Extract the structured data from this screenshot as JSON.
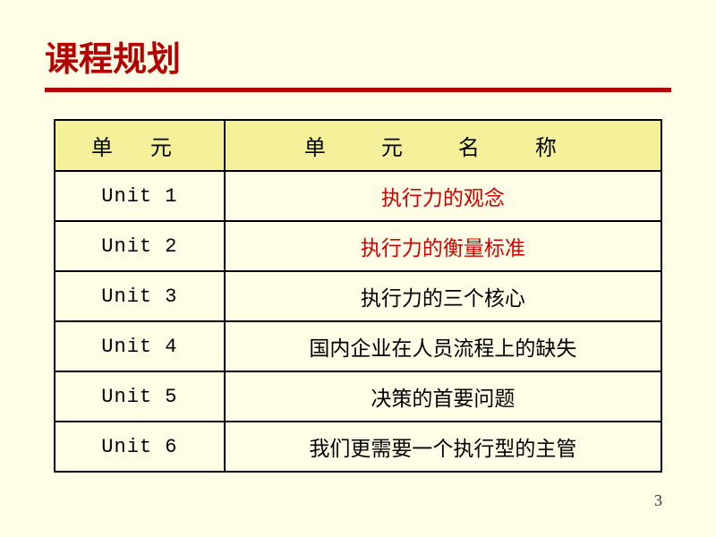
{
  "slide": {
    "title": "课程规划",
    "page_number": "3",
    "colors": {
      "background": "#fffde6",
      "title_color": "#b30000",
      "underline_color": "#b30000",
      "header_bg": "#f5f09a",
      "highlight_text": "#d10000",
      "border_color": "#000000"
    },
    "table": {
      "headers": {
        "col1": "单 元",
        "col2": "单  元  名  称"
      },
      "rows": [
        {
          "unit": "Unit 1",
          "name": "执行力的观念",
          "highlight": true
        },
        {
          "unit": "Unit 2",
          "name": "执行力的衡量标准",
          "highlight": true
        },
        {
          "unit": "Unit 3",
          "name": "执行力的三个核心",
          "highlight": false
        },
        {
          "unit": "Unit 4",
          "name": "国内企业在人员流程上的缺失",
          "highlight": false
        },
        {
          "unit": "Unit 5",
          "name": "决策的首要问题",
          "highlight": false
        },
        {
          "unit": "Unit 6",
          "name": "我们更需要一个执行型的主管",
          "highlight": false
        }
      ]
    }
  }
}
